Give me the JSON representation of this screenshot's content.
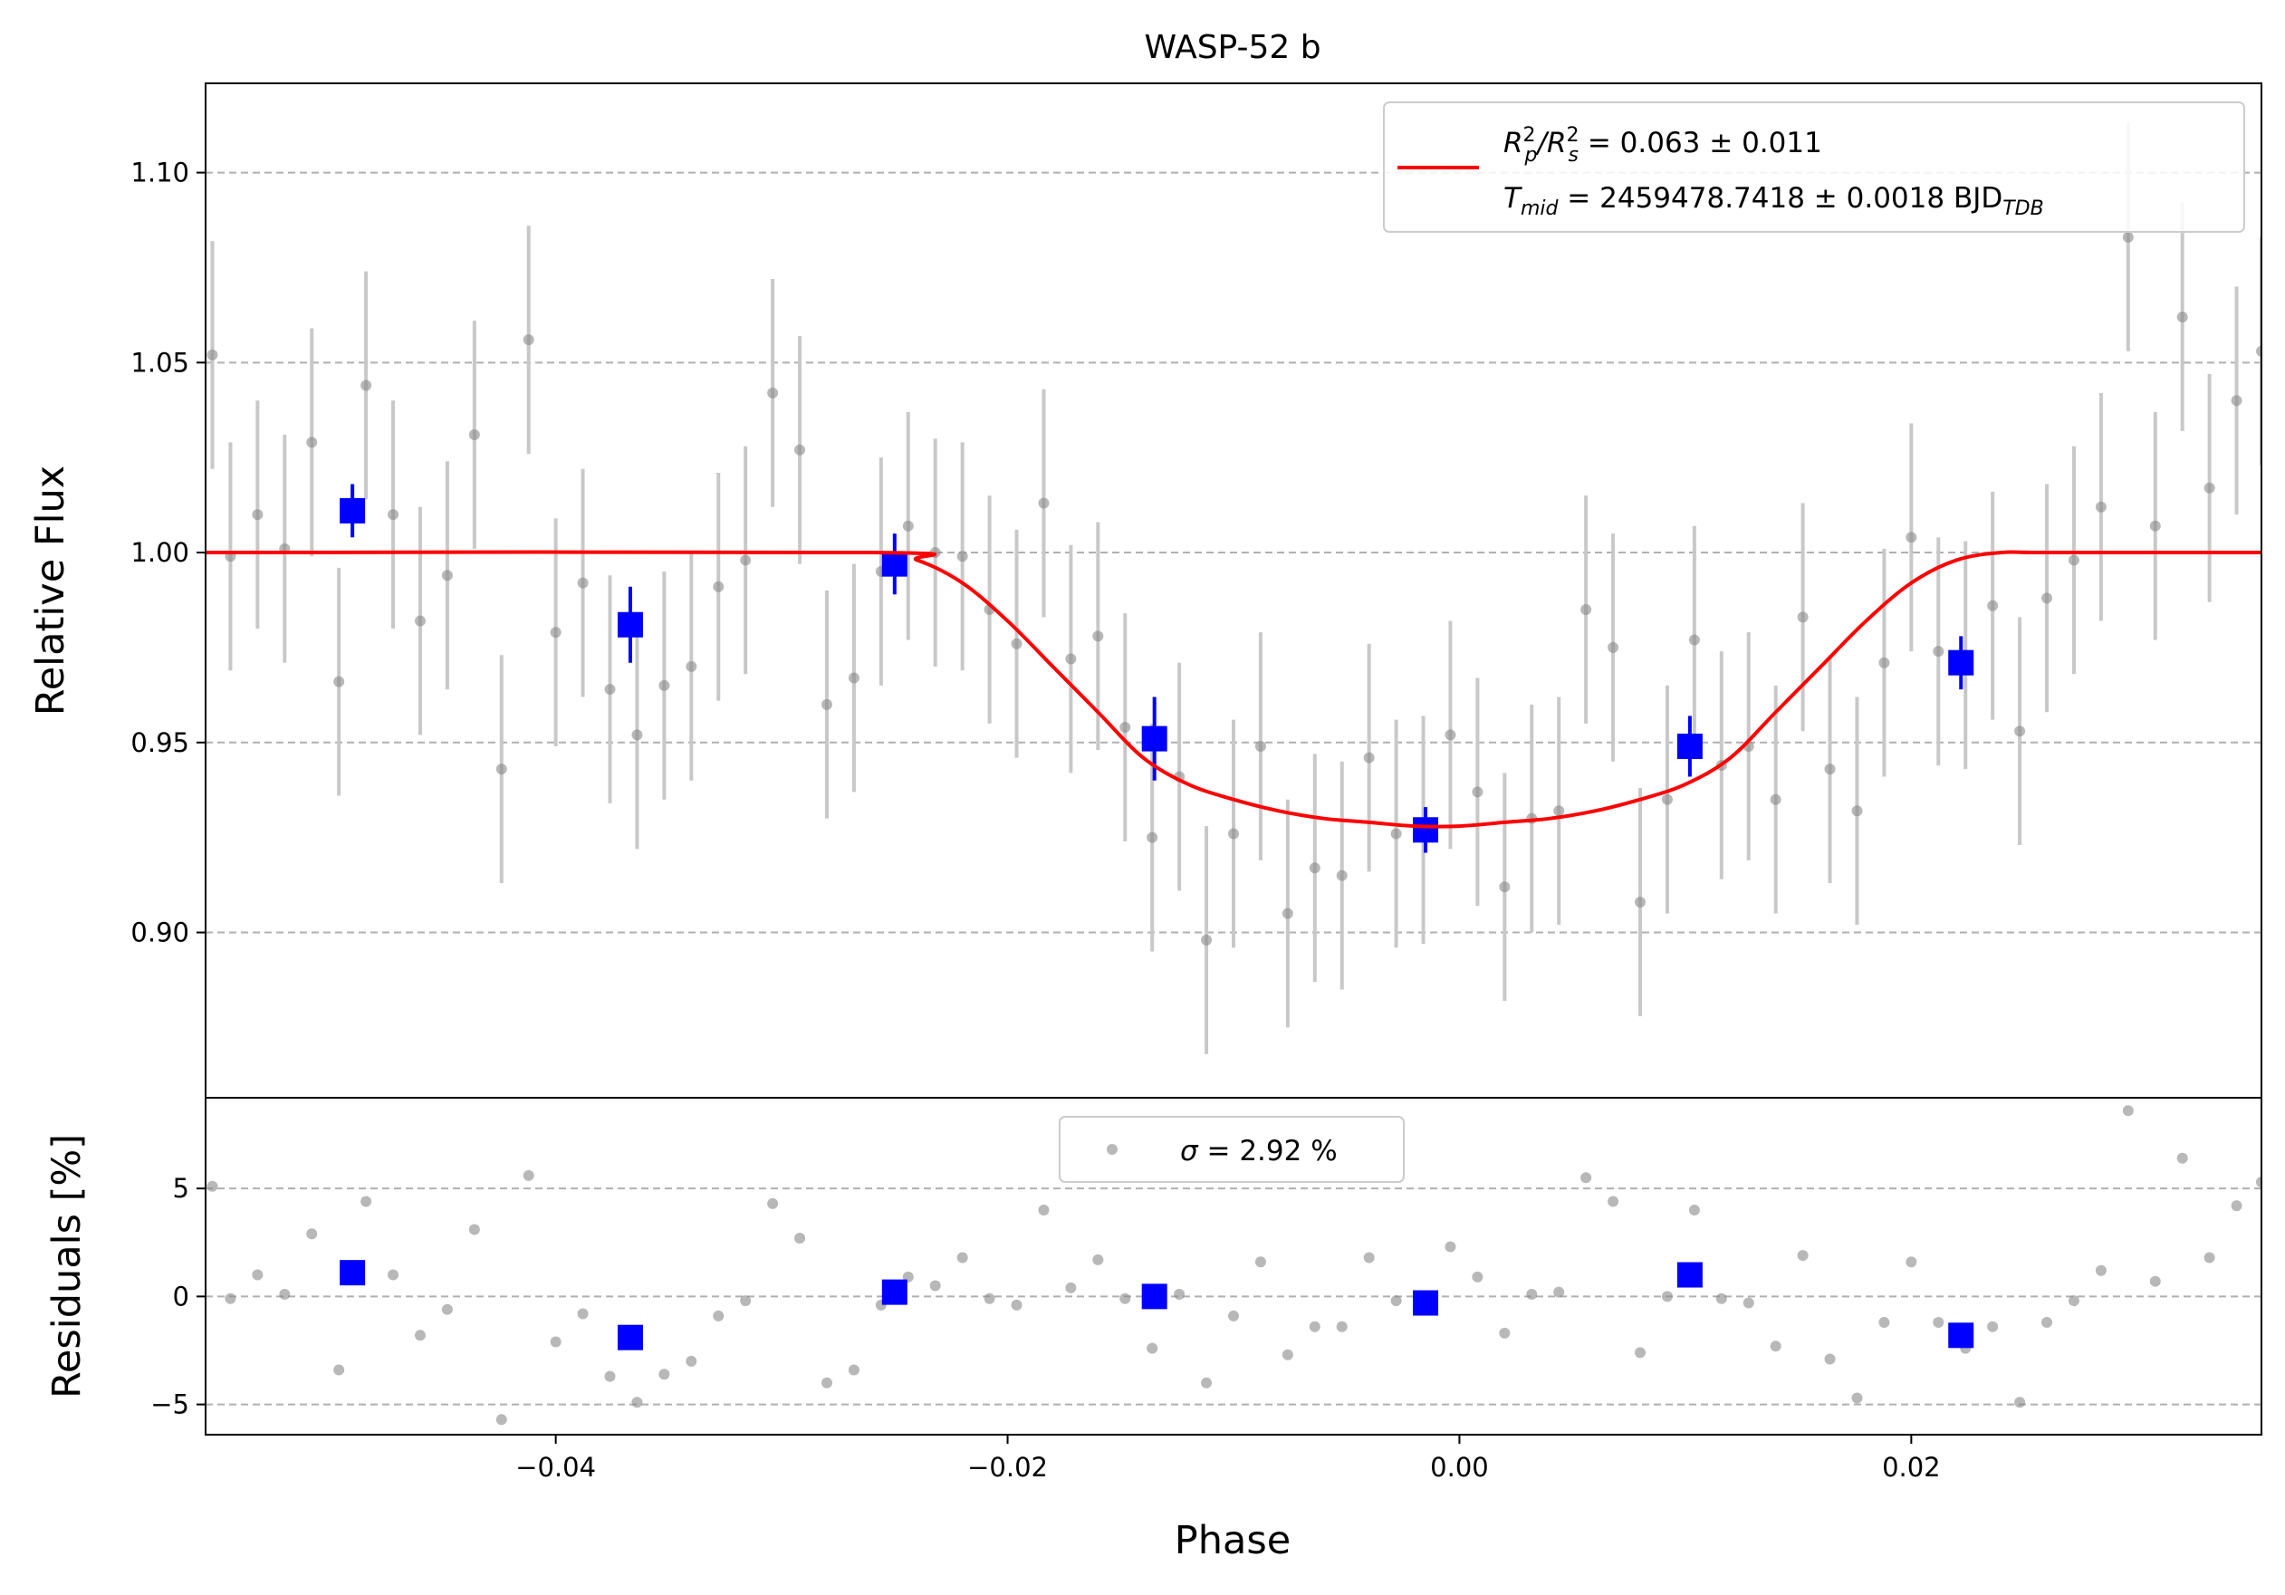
{
  "chart_data": [
    {
      "panel": "light-curve",
      "type": "scatter",
      "title": "WASP-52 b",
      "xlabel": "",
      "ylabel": "Relative Flux",
      "xlim": [
        -0.0555,
        0.0355
      ],
      "ylim": [
        0.8565,
        1.1235
      ],
      "yticks": [
        0.9,
        0.95,
        1.0,
        1.05,
        1.1
      ],
      "ytick_labels": [
        "0.90",
        "0.95",
        "1.00",
        "1.05",
        "1.10"
      ],
      "grid": "horizontal dashed",
      "legend_position": "top-right",
      "legend": {
        "line1": {
          "prefix": "R",
          "sub1": "p",
          "sup1": "2",
          "sep": "/R",
          "sub2": "s",
          "sup2": "2",
          "value": " = 0.063 ± 0.011"
        },
        "line2": {
          "prefix": "T",
          "sub1": "mid",
          "value": " = 2459478.7418 ± 0.0018 BJD",
          "sub2": "TDB"
        }
      },
      "colors": {
        "raw": "#888888",
        "raw_err": "#c8c8c8",
        "binned": "#0000ff",
        "model": "#ff0000",
        "grid": "#b0b0b0"
      },
      "raw_points": {
        "x": [
          -0.0552,
          -0.0544,
          -0.0532,
          -0.052,
          -0.0508,
          -0.0496,
          -0.0484,
          -0.0472,
          -0.046,
          -0.0448,
          -0.0436,
          -0.0424,
          -0.0412,
          -0.04,
          -0.0388,
          -0.0376,
          -0.0364,
          -0.0352,
          -0.034,
          -0.0328,
          -0.0316,
          -0.0304,
          -0.0292,
          -0.028,
          -0.0268,
          -0.0256,
          -0.0244,
          -0.0232,
          -0.022,
          -0.0208,
          -0.0196,
          -0.0184,
          -0.0172,
          -0.016,
          -0.0148,
          -0.0136,
          -0.0124,
          -0.0112,
          -0.01,
          -0.0088,
          -0.0076,
          -0.0064,
          -0.0052,
          -0.004,
          -0.0028,
          -0.0016,
          -0.0004,
          0.0008,
          0.002,
          0.0032,
          0.0044,
          0.0056,
          0.0068,
          0.008,
          0.0092,
          0.0104,
          0.0116,
          0.0128,
          0.014,
          0.0152,
          0.0164,
          0.0176,
          0.0188,
          0.02,
          0.0212,
          0.0224,
          0.0236,
          0.0248,
          0.026,
          0.0272,
          0.0284,
          0.0296,
          0.0308,
          0.032,
          0.0332,
          0.0344,
          0.0355
        ],
        "y": [
          1.052,
          0.999,
          1.01,
          1.001,
          1.029,
          0.966,
          1.044,
          1.01,
          0.982,
          0.994,
          1.031,
          0.943,
          1.056,
          0.979,
          0.992,
          0.964,
          0.952,
          0.965,
          0.97,
          0.991,
          0.998,
          1.042,
          1.027,
          0.96,
          0.967,
          0.995,
          1.007,
          1.0,
          0.999,
          0.985,
          0.976,
          1.013,
          0.972,
          0.978,
          0.954,
          0.925,
          0.941,
          0.898,
          0.926,
          0.949,
          0.905,
          0.917,
          0.915,
          0.946,
          0.926,
          0.927,
          0.952,
          0.937,
          0.912,
          0.93,
          0.932,
          0.985,
          0.975,
          0.908,
          0.935,
          0.977,
          0.944,
          0.949,
          0.935,
          0.983,
          0.943,
          0.932,
          0.971,
          1.004,
          0.974,
          0.973,
          0.986,
          0.953,
          0.988,
          0.998,
          1.012,
          1.083,
          1.007,
          1.062,
          1.017,
          1.04,
          1.053
        ],
        "err": [
          0.03,
          0.03,
          0.03,
          0.03,
          0.03,
          0.03,
          0.03,
          0.03,
          0.03,
          0.03,
          0.03,
          0.03,
          0.03,
          0.03,
          0.03,
          0.03,
          0.03,
          0.03,
          0.03,
          0.03,
          0.03,
          0.03,
          0.03,
          0.03,
          0.03,
          0.03,
          0.03,
          0.03,
          0.03,
          0.03,
          0.03,
          0.03,
          0.03,
          0.03,
          0.03,
          0.03,
          0.03,
          0.03,
          0.03,
          0.03,
          0.03,
          0.03,
          0.03,
          0.03,
          0.03,
          0.03,
          0.03,
          0.03,
          0.03,
          0.03,
          0.03,
          0.03,
          0.03,
          0.03,
          0.03,
          0.03,
          0.03,
          0.03,
          0.03,
          0.03,
          0.03,
          0.03,
          0.03,
          0.03,
          0.03,
          0.03,
          0.03,
          0.03,
          0.03,
          0.03,
          0.03,
          0.03,
          0.03,
          0.03,
          0.03,
          0.03,
          0.03
        ]
      },
      "binned_points": {
        "x": [
          -0.049,
          -0.0367,
          -0.025,
          -0.0135,
          -0.0015,
          0.0102,
          0.0222
        ],
        "y": [
          1.011,
          0.981,
          0.997,
          0.951,
          0.927,
          0.949,
          0.971
        ],
        "err": [
          0.007,
          0.01,
          0.008,
          0.011,
          0.006,
          0.008,
          0.007
        ]
      },
      "model": {
        "x": [
          -0.0555,
          -0.026,
          -0.024,
          -0.022,
          -0.02,
          -0.018,
          -0.016,
          -0.014,
          -0.012,
          -0.01,
          -0.008,
          -0.006,
          -0.004,
          -0.002,
          0.0,
          0.002,
          0.004,
          0.006,
          0.008,
          0.01,
          0.012,
          0.014,
          0.016,
          0.018,
          0.02,
          0.022,
          0.024,
          0.026,
          0.0355
        ],
        "y": [
          1.0,
          1.0,
          0.998,
          0.992,
          0.982,
          0.97,
          0.958,
          0.946,
          0.939,
          0.935,
          0.932,
          0.93,
          0.929,
          0.928,
          0.928,
          0.929,
          0.93,
          0.932,
          0.935,
          0.939,
          0.946,
          0.958,
          0.97,
          0.982,
          0.992,
          0.998,
          1.0,
          1.0,
          1.0
        ]
      }
    },
    {
      "panel": "residuals",
      "type": "scatter",
      "xlabel": "Phase",
      "ylabel": "Residuals [%]",
      "xlim": [
        -0.0555,
        0.0355
      ],
      "ylim": [
        -6.4,
        9.2
      ],
      "yticks": [
        -5,
        0,
        5
      ],
      "ytick_labels": [
        "−5",
        "0",
        "5"
      ],
      "xticks": [
        -0.04,
        -0.02,
        0.0,
        0.02
      ],
      "xtick_labels": [
        "−0.04",
        "−0.02",
        "0.00",
        "0.02"
      ],
      "grid": "horizontal dashed",
      "legend_position": "top-center",
      "legend": {
        "sigma_symbol": "σ",
        "text": " = 2.92 %"
      },
      "raw_points": {
        "x": [
          -0.0552,
          -0.0544,
          -0.0532,
          -0.052,
          -0.0508,
          -0.0496,
          -0.0484,
          -0.0472,
          -0.046,
          -0.0448,
          -0.0436,
          -0.0424,
          -0.0412,
          -0.04,
          -0.0388,
          -0.0376,
          -0.0364,
          -0.0352,
          -0.034,
          -0.0328,
          -0.0316,
          -0.0304,
          -0.0292,
          -0.028,
          -0.0268,
          -0.0256,
          -0.0244,
          -0.0232,
          -0.022,
          -0.0208,
          -0.0196,
          -0.0184,
          -0.0172,
          -0.016,
          -0.0148,
          -0.0136,
          -0.0124,
          -0.0112,
          -0.01,
          -0.0088,
          -0.0076,
          -0.0064,
          -0.0052,
          -0.004,
          -0.0028,
          -0.0016,
          -0.0004,
          0.0008,
          0.002,
          0.0032,
          0.0044,
          0.0056,
          0.0068,
          0.008,
          0.0092,
          0.0104,
          0.0116,
          0.0128,
          0.014,
          0.0152,
          0.0164,
          0.0176,
          0.0188,
          0.02,
          0.0212,
          0.0224,
          0.0236,
          0.0248,
          0.026,
          0.0272,
          0.0284,
          0.0296,
          0.0308,
          0.032,
          0.0332,
          0.0344,
          0.0355
        ],
        "y": [
          5.1,
          -0.1,
          1.0,
          0.1,
          2.9,
          -3.4,
          4.4,
          1.0,
          -1.8,
          -0.6,
          3.1,
          -5.7,
          5.6,
          -2.1,
          -0.8,
          -3.7,
          -4.9,
          -3.6,
          -3.0,
          -0.9,
          -0.2,
          4.3,
          2.7,
          -4.0,
          -3.4,
          -0.4,
          0.9,
          0.5,
          1.8,
          -0.1,
          -0.4,
          4.0,
          0.4,
          1.7,
          -0.1,
          -2.4,
          0.1,
          -4.0,
          -0.9,
          1.6,
          -2.7,
          -1.4,
          -1.4,
          1.8,
          -0.2,
          -0.1,
          2.3,
          0.9,
          -1.7,
          0.1,
          0.2,
          5.5,
          4.4,
          -2.6,
          0.0,
          4.0,
          -0.1,
          -0.3,
          -2.3,
          1.9,
          -2.9,
          -4.7,
          -1.2,
          1.6,
          -1.2,
          -2.4,
          -1.4,
          -4.9,
          -1.2,
          -0.2,
          1.2,
          8.6,
          0.7,
          6.4,
          1.8,
          4.2,
          5.3
        ]
      },
      "binned_points": {
        "x": [
          -0.049,
          -0.0367,
          -0.025,
          -0.0135,
          -0.0015,
          0.0102,
          0.0222
        ],
        "y": [
          1.1,
          -1.9,
          0.2,
          0.0,
          -0.3,
          1.0,
          -1.8
        ]
      },
      "colors": {
        "raw": "#888888",
        "binned": "#0000ff",
        "grid": "#b0b0b0"
      }
    }
  ]
}
